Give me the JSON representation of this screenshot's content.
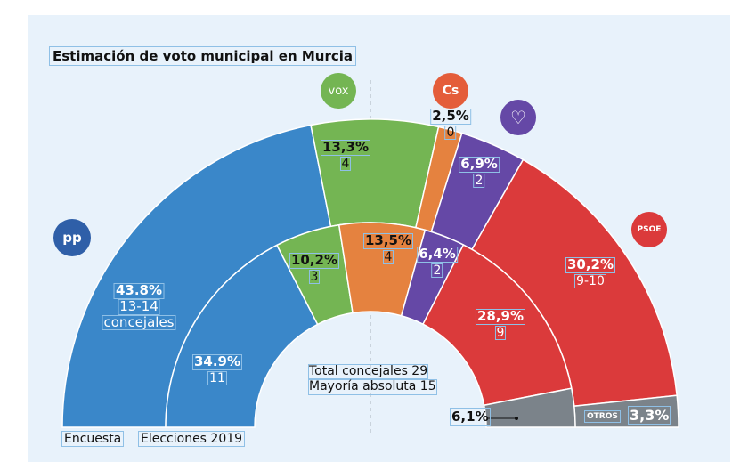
{
  "title": "Estimación de voto municipal en Murcia",
  "chart_data": {
    "type": "pie",
    "subtype": "semicircle-donut-two-rings",
    "title": "Estimación de voto municipal en Murcia",
    "rings": [
      {
        "name": "Encuesta",
        "position": "outer",
        "slices": [
          {
            "party": "PP",
            "value": 43.8,
            "pct_label": "43.8%",
            "seats": "13-14",
            "seats_extra": "concejales",
            "color": "#3a87c9"
          },
          {
            "party": "VOX",
            "value": 13.3,
            "pct_label": "13,3%",
            "seats": "4",
            "color": "#74b553"
          },
          {
            "party": "Cs",
            "value": 2.5,
            "pct_label": "2,5%",
            "seats": "0",
            "color": "#e5823f"
          },
          {
            "party": "Podemos",
            "value": 6.9,
            "pct_label": "6,9%",
            "seats": "2",
            "color": "#6548a6"
          },
          {
            "party": "PSOE",
            "value": 30.2,
            "pct_label": "30,2%",
            "seats": "9-10",
            "color": "#db3a3b"
          },
          {
            "party": "Otros",
            "value": 3.3,
            "pct_label": "3,3%",
            "color": "#7b838a"
          }
        ]
      },
      {
        "name": "Elecciones 2019",
        "position": "inner",
        "slices": [
          {
            "party": "PP",
            "value": 34.9,
            "pct_label": "34.9%",
            "seats": "11",
            "color": "#3a87c9"
          },
          {
            "party": "VOX",
            "value": 10.2,
            "pct_label": "10,2%",
            "seats": "3",
            "color": "#74b553"
          },
          {
            "party": "Cs",
            "value": 13.5,
            "pct_label": "13,5%",
            "seats": "4",
            "color": "#e5823f"
          },
          {
            "party": "Podemos",
            "value": 6.4,
            "pct_label": "6,4%",
            "seats": "2",
            "color": "#6548a6"
          },
          {
            "party": "PSOE",
            "value": 28.9,
            "pct_label": "28,9%",
            "seats": "9",
            "color": "#db3a3b"
          },
          {
            "party": "Otros",
            "value": 6.1,
            "pct_label": "6,1%",
            "color": "#7b838a"
          }
        ]
      }
    ]
  },
  "logos": {
    "pp": "pp",
    "vox": "vox",
    "cs": "Cs",
    "psoe": "PSOE"
  },
  "otros_label": "OTROS",
  "note": {
    "total": "Total concejales 29",
    "majority": "Mayoría absoluta 15"
  },
  "legend": {
    "outer": "Encuesta",
    "inner": "Elecciones 2019"
  }
}
